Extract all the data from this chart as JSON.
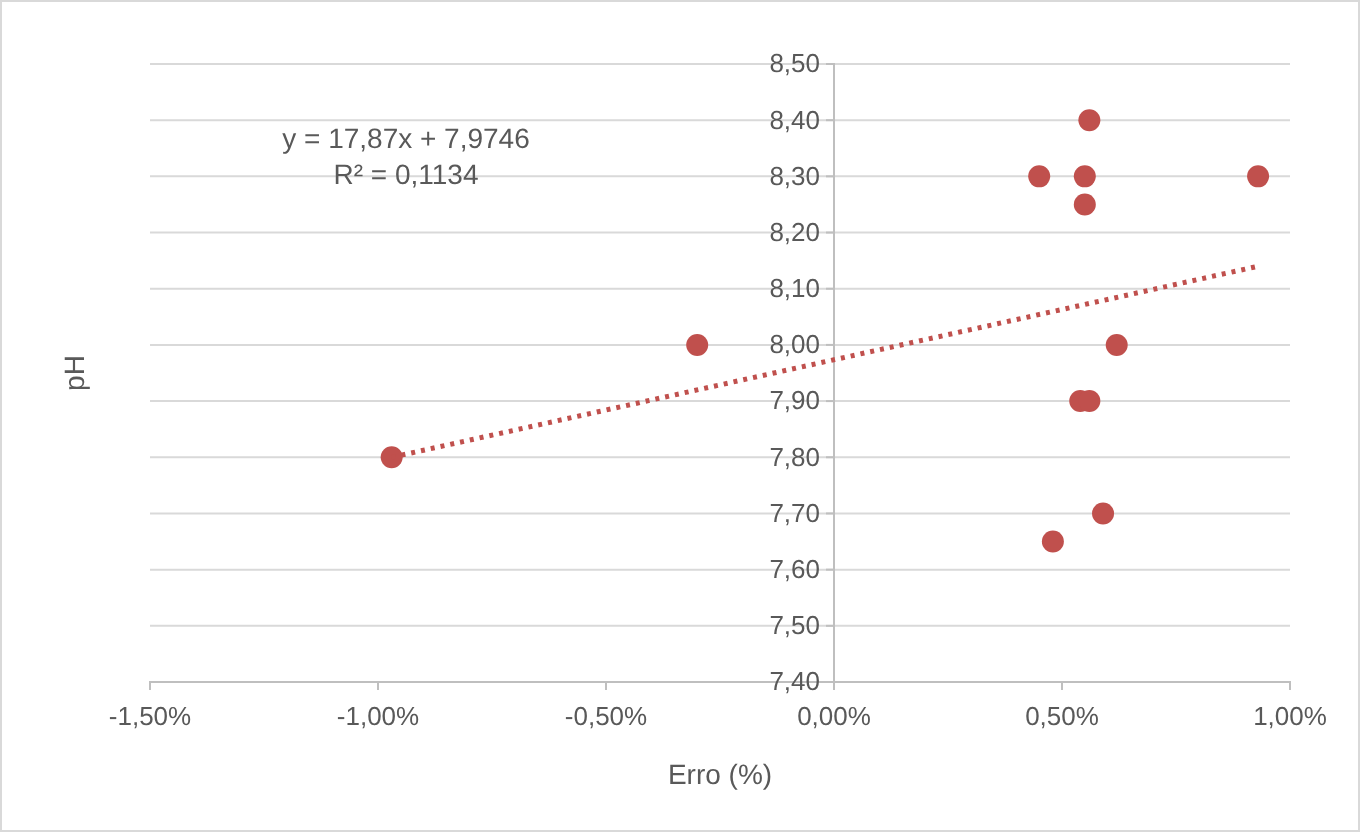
{
  "chart_data": {
    "type": "scatter",
    "xlabel": "Erro (%)",
    "ylabel": "pH",
    "xlim": [
      -1.5,
      1.0
    ],
    "ylim": [
      7.4,
      8.5
    ],
    "xticks": [
      {
        "value": -1.5,
        "label": "-1,50%"
      },
      {
        "value": -1.0,
        "label": "-1,00%"
      },
      {
        "value": -0.5,
        "label": "-0,50%"
      },
      {
        "value": 0,
        "label": "0,00%"
      },
      {
        "value": 0.5,
        "label": "0,50%"
      },
      {
        "value": 1.0,
        "label": "1,00%"
      }
    ],
    "yticks": [
      {
        "value": 7.4,
        "label": "7,40"
      },
      {
        "value": 7.5,
        "label": "7,50"
      },
      {
        "value": 7.6,
        "label": "7,60"
      },
      {
        "value": 7.7,
        "label": "7,70"
      },
      {
        "value": 7.8,
        "label": "7,80"
      },
      {
        "value": 7.9,
        "label": "7,90"
      },
      {
        "value": 8.0,
        "label": "8,00"
      },
      {
        "value": 8.1,
        "label": "8,10"
      },
      {
        "value": 8.2,
        "label": "8,20"
      },
      {
        "value": 8.3,
        "label": "8,30"
      },
      {
        "value": 8.4,
        "label": "8,40"
      },
      {
        "value": 8.5,
        "label": "8,50"
      }
    ],
    "grid": "y",
    "marker": "circle",
    "series": [
      {
        "color": "#c0504d",
        "x": [
          -0.97,
          -0.3,
          0.45,
          0.56,
          0.55,
          0.55,
          0.93,
          0.62,
          0.54,
          0.56,
          0.59,
          0.48
        ],
        "values": [
          7.8,
          8.0,
          8.3,
          8.4,
          8.3,
          8.25,
          8.3,
          8.0,
          7.9,
          7.9,
          7.7,
          7.65
        ]
      },
      {
        "type": "line",
        "color": "#c0504d",
        "line_style": "dotted",
        "marker": "none",
        "x": [
          -0.97,
          0.93
        ],
        "values": [
          7.8,
          8.14
        ]
      }
    ],
    "annotations": [
      "y = 17,87x + 7,9746",
      "R² = 0,1134"
    ]
  }
}
